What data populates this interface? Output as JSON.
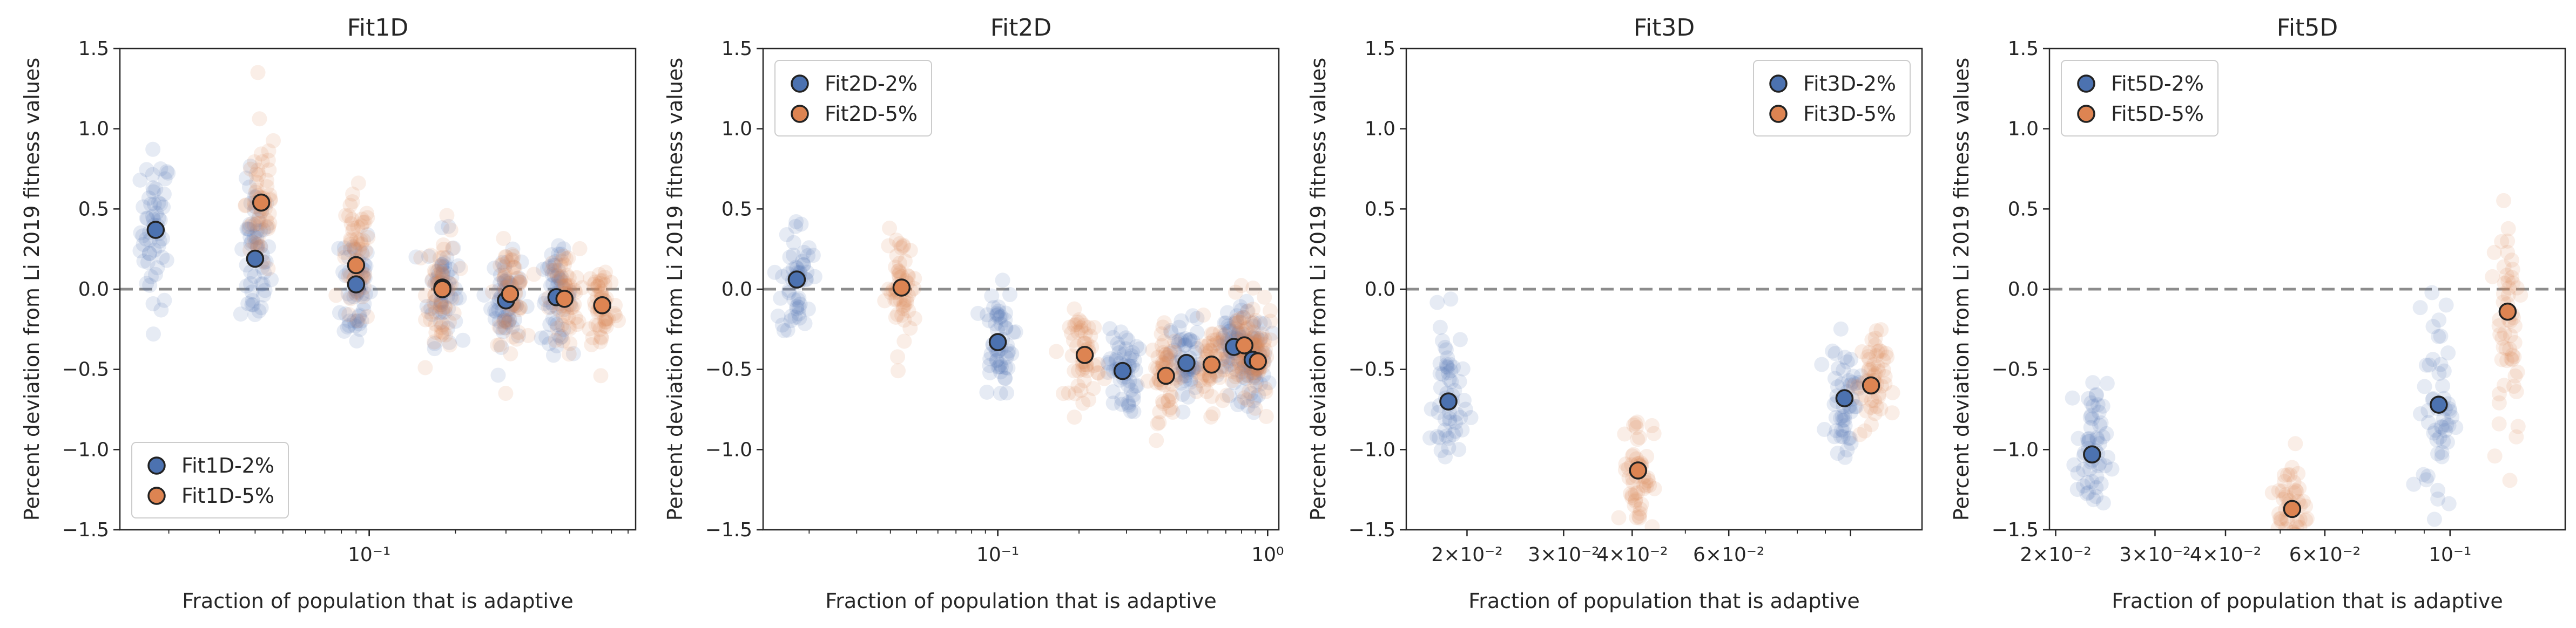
{
  "colors": {
    "blue": "#4c72b0",
    "orange": "#dd8452",
    "blue_cloud": "#4c72b0",
    "orange_cloud": "#dd8452",
    "refline": "#8c8c8c"
  },
  "chart_data": [
    {
      "type": "scatter",
      "title": "Fit1D",
      "xlabel": "Fraction of population that is adaptive",
      "ylabel": "Percent deviation from Li 2019 fitness values",
      "xscale": "log",
      "xlim": [
        0.0135,
        0.85
      ],
      "ylim": [
        -1.5,
        1.5
      ],
      "yticks": [
        "-1.5",
        "-1.0",
        "-0.5",
        "0.0",
        "0.5",
        "1.0",
        "1.5"
      ],
      "xticks": [
        {
          "value": 0.1,
          "label": "10⁻¹"
        }
      ],
      "reference_line_y": 0,
      "legend_position": "lower-left",
      "series": [
        {
          "name": "Fit1D-2%",
          "color_key": "blue",
          "x": [
            0.018,
            0.04,
            0.09,
            0.18,
            0.3,
            0.45
          ],
          "y": [
            0.37,
            0.19,
            0.03,
            0.01,
            -0.07,
            -0.05
          ],
          "spread": [
            0.45,
            0.42,
            0.38,
            0.3,
            0.25,
            0.25
          ]
        },
        {
          "name": "Fit1D-5%",
          "color_key": "orange",
          "x": [
            0.042,
            0.09,
            0.18,
            0.31,
            0.48,
            0.65
          ],
          "y": [
            0.54,
            0.15,
            0.0,
            -0.03,
            -0.06,
            -0.1
          ],
          "spread": [
            0.45,
            0.38,
            0.35,
            0.28,
            0.28,
            0.28
          ]
        }
      ]
    },
    {
      "type": "scatter",
      "title": "Fit2D",
      "xlabel": "Fraction of population that is adaptive",
      "ylabel": "Percent deviation from Li 2019 fitness values",
      "xscale": "log",
      "xlim": [
        0.0135,
        1.1
      ],
      "ylim": [
        -1.5,
        1.5
      ],
      "yticks": [
        "-1.5",
        "-1.0",
        "-0.5",
        "0.0",
        "0.5",
        "1.0",
        "1.5"
      ],
      "xticks": [
        {
          "value": 0.1,
          "label": "10⁻¹"
        },
        {
          "value": 1.0,
          "label": "10⁰"
        }
      ],
      "reference_line_y": 0,
      "legend_position": "upper-left",
      "series": [
        {
          "name": "Fit2D-2%",
          "color_key": "blue",
          "x": [
            0.018,
            0.1,
            0.29,
            0.5,
            0.75,
            0.88
          ],
          "y": [
            0.06,
            -0.33,
            -0.51,
            -0.46,
            -0.36,
            -0.44
          ],
          "spread": [
            0.35,
            0.3,
            0.25,
            0.25,
            0.25,
            0.25
          ]
        },
        {
          "name": "Fit2D-5%",
          "color_key": "orange",
          "x": [
            0.044,
            0.21,
            0.42,
            0.62,
            0.82,
            0.92
          ],
          "y": [
            0.01,
            -0.41,
            -0.54,
            -0.47,
            -0.35,
            -0.45
          ],
          "spread": [
            0.3,
            0.25,
            0.25,
            0.25,
            0.25,
            0.25
          ]
        }
      ]
    },
    {
      "type": "scatter",
      "title": "Fit3D",
      "xlabel": "Fraction of population that is adaptive",
      "ylabel": "Percent deviation from Li 2019 fitness values",
      "xscale": "log",
      "xlim": [
        0.0155,
        0.135
      ],
      "ylim": [
        -1.5,
        1.5
      ],
      "yticks": [
        "-1.5",
        "-1.0",
        "-0.5",
        "0.0",
        "0.5",
        "1.0",
        "1.5"
      ],
      "xticks": [
        {
          "value": 0.02,
          "label": "2×10⁻²"
        },
        {
          "value": 0.03,
          "label": "3×10⁻²"
        },
        {
          "value": 0.04,
          "label": "4×10⁻²"
        },
        {
          "value": 0.06,
          "label": "6×10⁻²"
        }
      ],
      "reference_line_y": 0,
      "legend_position": "upper-right",
      "series": [
        {
          "name": "Fit3D-2%",
          "color_key": "blue",
          "x": [
            0.0185,
            0.0975
          ],
          "y": [
            -0.7,
            -0.68
          ],
          "spread": [
            0.45,
            0.3
          ]
        },
        {
          "name": "Fit3D-5%",
          "color_key": "orange",
          "x": [
            0.041,
            0.109
          ],
          "y": [
            -1.13,
            -0.6
          ],
          "spread": [
            0.35,
            0.3
          ]
        }
      ]
    },
    {
      "type": "scatter",
      "title": "Fit5D",
      "xlabel": "Fraction of population that is adaptive",
      "ylabel": "Percent deviation from Li 2019 fitness values",
      "xscale": "log",
      "xlim": [
        0.0195,
        0.16
      ],
      "ylim": [
        -1.5,
        1.5
      ],
      "yticks": [
        "-1.5",
        "-1.0",
        "-0.5",
        "0.0",
        "0.5",
        "1.0",
        "1.5"
      ],
      "xticks": [
        {
          "value": 0.02,
          "label": "2×10⁻²"
        },
        {
          "value": 0.03,
          "label": "3×10⁻²"
        },
        {
          "value": 0.04,
          "label": "4×10⁻²"
        },
        {
          "value": 0.06,
          "label": "6×10⁻²"
        },
        {
          "value": 0.1,
          "label": "10⁻¹"
        }
      ],
      "reference_line_y": 0,
      "legend_position": "upper-left",
      "series": [
        {
          "name": "Fit5D-2%",
          "color_key": "blue",
          "x": [
            0.0232,
            0.0955
          ],
          "y": [
            -1.03,
            -0.72
          ],
          "spread": [
            0.4,
            0.6
          ]
        },
        {
          "name": "Fit5D-5%",
          "color_key": "orange",
          "x": [
            0.0525,
            0.1265
          ],
          "y": [
            -1.37,
            -0.14
          ],
          "spread": [
            0.35,
            0.75
          ]
        }
      ]
    }
  ]
}
